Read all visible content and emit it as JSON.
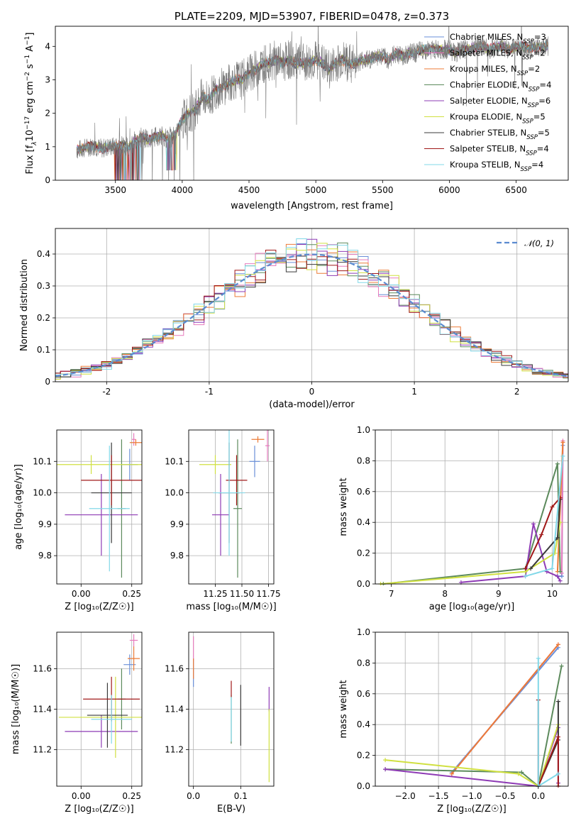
{
  "chart_data": [
    {
      "type": "line",
      "title": "PLATE=2209, MJD=53907, FIBERID=0478, z=0.373",
      "xlabel": "wavelength [Angstrom, rest frame]",
      "ylabel": "Flux [f",
      "ylabel_parts": [
        "Flux [f",
        "λ",
        "10",
        "−17",
        " erg cm",
        "−2",
        " s",
        "−1",
        " A",
        "−1",
        "]"
      ],
      "xlim": [
        3050,
        6890
      ],
      "ylim": [
        0,
        4.6
      ],
      "xticks": [
        3500,
        4000,
        4500,
        5000,
        5500,
        6000,
        6500
      ],
      "yticks": [
        0,
        1,
        2,
        3,
        4
      ],
      "data_series": {
        "name": "data",
        "x": [
          3210,
          3260,
          3300,
          3350,
          3400,
          3450,
          3500,
          3550,
          3600,
          3650,
          3700,
          3750,
          3800,
          3850,
          3900,
          3950,
          4000,
          4050,
          4100,
          4150,
          4200,
          4250,
          4300,
          4350,
          4400,
          4450,
          4500,
          4550,
          4600,
          4650,
          4700,
          4750,
          4800,
          4850,
          4900,
          4950,
          5000,
          5050,
          5100,
          5150,
          5200,
          5250,
          5300,
          5350,
          5400,
          5450,
          5500,
          5550,
          5600,
          5650,
          5700,
          5750,
          5800,
          5850,
          5900,
          5950,
          6000,
          6050,
          6100,
          6150,
          6200,
          6250,
          6300,
          6350,
          6400,
          6450,
          6500,
          6550,
          6600,
          6650,
          6700
        ],
        "y": [
          0.9,
          0.95,
          1.0,
          1.0,
          0.95,
          1.0,
          1.0,
          1.05,
          1.0,
          1.2,
          1.3,
          1.2,
          1.3,
          1.35,
          1.2,
          1.4,
          1.8,
          2.0,
          2.1,
          2.5,
          2.4,
          2.7,
          2.8,
          2.9,
          3.0,
          3.0,
          3.2,
          3.3,
          3.5,
          3.5,
          3.6,
          3.5,
          3.6,
          3.5,
          3.5,
          3.5,
          3.6,
          3.5,
          3.3,
          3.5,
          3.6,
          3.5,
          3.5,
          3.6,
          3.6,
          3.7,
          3.7,
          3.6,
          3.8,
          3.7,
          3.8,
          3.8,
          3.9,
          3.9,
          3.9,
          3.9,
          3.9,
          3.8,
          3.9,
          3.9,
          4.0,
          4.0,
          3.9,
          4.0,
          4.0,
          3.9,
          4.0,
          4.0,
          3.95,
          4.0,
          4.0
        ]
      },
      "models": [
        {
          "name": "Chabrier MILES",
          "nssp": "3",
          "color": "#6a8fd8"
        },
        {
          "name": "Salpeter MILES",
          "nssp": "2",
          "color": "#e77bbd"
        },
        {
          "name": "Kroupa MILES",
          "nssp": "2",
          "color": "#ec7b37"
        },
        {
          "name": "Chabrier ELODIE",
          "nssp": "4",
          "color": "#5c8a5c"
        },
        {
          "name": "Salpeter ELODIE",
          "nssp": "6",
          "color": "#8e3bb5"
        },
        {
          "name": "Kroupa ELODIE",
          "nssp": "5",
          "color": "#d0e040"
        },
        {
          "name": "Chabrier STELIB",
          "nssp": "5",
          "color": "#3a3a3a"
        },
        {
          "name": "Salpeter STELIB",
          "nssp": "4",
          "color": "#a01818"
        },
        {
          "name": "Kroupa STELIB",
          "nssp": "4",
          "color": "#82d8e8"
        }
      ],
      "legend_subscript": "SSP",
      "legend": "top-right",
      "grid": false
    },
    {
      "type": "bar",
      "subtype": "step-histogram",
      "xlabel": "(data-model)/error",
      "ylabel": "Normed distribution",
      "xlim": [
        -2.5,
        2.5
      ],
      "ylim": [
        0,
        0.48
      ],
      "xticks": [
        -2,
        -1,
        0,
        1,
        2
      ],
      "yticks": [
        0.0,
        0.1,
        0.2,
        0.3,
        0.4
      ],
      "legend_label": "𝒩(0, 1)",
      "legend": "top-right",
      "grid": true
    },
    {
      "type": "scatter",
      "subtype": "errorbar",
      "xlabel": "Z [log₁₀(Z/Z☉)]",
      "ylabel": "age  [log₁₀(age/yr)]",
      "xlim": [
        -0.12,
        0.3
      ],
      "ylim": [
        9.71,
        10.2
      ],
      "xticks": [
        "0.00",
        "0.25"
      ],
      "yticks": [
        "9.8",
        "9.9",
        "10.0",
        "10.1"
      ],
      "points": [
        {
          "x": 0.24,
          "xerr": 0.04,
          "y": 10.09,
          "yerr": 0.05,
          "color": "#6a8fd8"
        },
        {
          "x": 0.26,
          "xerr": 0.01,
          "y": 10.17,
          "yerr": 0.02,
          "color": "#e77bbd"
        },
        {
          "x": 0.27,
          "xerr": 0.03,
          "y": 10.16,
          "yerr": 0.01,
          "color": "#ec7b37"
        },
        {
          "x": 0.2,
          "xerr": 0.02,
          "y": 9.95,
          "yerr": 0.22,
          "color": "#5c8a5c"
        },
        {
          "x": 0.1,
          "xerr": 0.18,
          "y": 9.93,
          "yerr": 0.13,
          "color": "#8e3bb5"
        },
        {
          "x": 0.05,
          "xerr": 0.25,
          "y": 10.09,
          "yerr": 0.03,
          "color": "#d0e040"
        },
        {
          "x": 0.15,
          "xerr": 0.1,
          "y": 10.0,
          "yerr": 0.16,
          "color": "#3a3a3a"
        },
        {
          "x": 0.15,
          "xerr": 0.15,
          "y": 10.04,
          "yerr": 0.08,
          "color": "#a01818"
        },
        {
          "x": 0.14,
          "xerr": 0.1,
          "y": 9.95,
          "yerr": 0.2,
          "color": "#82d8e8"
        }
      ],
      "grid": true
    },
    {
      "type": "scatter",
      "subtype": "errorbar",
      "xlabel": "mass [log₁₀(M/M☉)]",
      "ylabel": "",
      "xlim": [
        11.0,
        11.8
      ],
      "ylim": [
        9.71,
        10.2
      ],
      "xticks": [
        "11.25",
        "11.50",
        "11.75"
      ],
      "yticks": [
        "9.8",
        "9.9",
        "10.0",
        "10.1"
      ],
      "points": [
        {
          "x": 11.62,
          "xerr": 0.05,
          "y": 10.1,
          "yerr": 0.05,
          "color": "#6a8fd8"
        },
        {
          "x": 11.74,
          "xerr": 0.02,
          "y": 10.15,
          "yerr": 0.05,
          "color": "#e77bbd"
        },
        {
          "x": 11.65,
          "xerr": 0.06,
          "y": 10.17,
          "yerr": 0.01,
          "color": "#ec7b37"
        },
        {
          "x": 11.46,
          "xerr": 0.04,
          "y": 9.95,
          "yerr": 0.22,
          "color": "#5c8a5c"
        },
        {
          "x": 11.3,
          "xerr": 0.08,
          "y": 9.93,
          "yerr": 0.13,
          "color": "#8e3bb5"
        },
        {
          "x": 11.25,
          "xerr": 0.15,
          "y": 10.09,
          "yerr": 0.03,
          "color": "#d0e040"
        },
        {
          "x": 11.38,
          "xerr": 0.1,
          "y": 10.0,
          "yerr": 0.16,
          "color": "#3a3a3a"
        },
        {
          "x": 11.45,
          "xerr": 0.1,
          "y": 10.04,
          "yerr": 0.08,
          "color": "#a01818"
        },
        {
          "x": 11.38,
          "xerr": 0.15,
          "y": 10.0,
          "yerr": 0.2,
          "color": "#82d8e8"
        }
      ],
      "grid": true
    },
    {
      "type": "line",
      "xlabel": "age  [log₁₀(age/yr)]",
      "ylabel": "mass weight",
      "xlim": [
        6.7,
        10.3
      ],
      "ylim": [
        0.0,
        1.0
      ],
      "xticks": [
        "7",
        "8",
        "9",
        "10"
      ],
      "yticks": [
        "0.0",
        "0.2",
        "0.4",
        "0.6",
        "0.8",
        "1.0"
      ],
      "series": [
        {
          "name": "Chabrier MILES",
          "color": "#6a8fd8",
          "x": [
            10.1,
            10.18,
            10.2
          ],
          "y": [
            0.05,
            0.05,
            0.9
          ]
        },
        {
          "name": "Salpeter MILES",
          "color": "#e77bbd",
          "x": [
            10.18,
            10.2
          ],
          "y": [
            0.07,
            0.93
          ]
        },
        {
          "name": "Kroupa MILES",
          "color": "#ec7b37",
          "x": [
            10.1,
            10.2
          ],
          "y": [
            0.08,
            0.92
          ]
        },
        {
          "name": "Chabrier ELODIE",
          "color": "#5c8a5c",
          "x": [
            6.85,
            9.5,
            10.1,
            10.15
          ],
          "y": [
            0.0,
            0.1,
            0.78,
            0.08
          ]
        },
        {
          "name": "Salpeter ELODIE",
          "color": "#8e3bb5",
          "x": [
            8.3,
            9.5,
            9.65,
            9.9,
            10.1,
            10.15
          ],
          "y": [
            0.01,
            0.05,
            0.39,
            0.08,
            0.05,
            0.02
          ]
        },
        {
          "name": "Kroupa ELODIE",
          "color": "#d0e040",
          "x": [
            6.8,
            9.5,
            10.05,
            10.15
          ],
          "y": [
            0.0,
            0.08,
            0.2,
            0.4
          ]
        },
        {
          "name": "Chabrier STELIB",
          "color": "#3a3a3a",
          "x": [
            9.6,
            10.1,
            10.15
          ],
          "y": [
            0.1,
            0.3,
            0.55
          ]
        },
        {
          "name": "Salpeter STELIB",
          "color": "#a01818",
          "x": [
            9.5,
            9.8,
            10.0,
            10.15
          ],
          "y": [
            0.1,
            0.32,
            0.5,
            0.56
          ]
        },
        {
          "name": "Kroupa STELIB",
          "color": "#82d8e8",
          "x": [
            9.5,
            10.0,
            10.2
          ],
          "y": [
            0.05,
            0.1,
            0.83
          ]
        }
      ],
      "grid": true
    },
    {
      "type": "scatter",
      "subtype": "errorbar",
      "xlabel": "Z [log₁₀(Z/Z☉)]",
      "ylabel": "mass [log₁₀(M/M☉)]",
      "xlim": [
        -0.12,
        0.3
      ],
      "ylim": [
        11.02,
        11.78
      ],
      "xticks": [
        "0.00",
        "0.25"
      ],
      "yticks": [
        "11.2",
        "11.4",
        "11.6"
      ],
      "points": [
        {
          "x": 0.24,
          "xerr": 0.03,
          "y": 11.62,
          "yerr": 0.05,
          "color": "#6a8fd8"
        },
        {
          "x": 0.26,
          "xerr": 0.02,
          "y": 11.74,
          "yerr": 0.03,
          "color": "#e77bbd"
        },
        {
          "x": 0.26,
          "xerr": 0.03,
          "y": 11.65,
          "yerr": 0.06,
          "color": "#ec7b37"
        },
        {
          "x": 0.2,
          "xerr": 0.02,
          "y": 11.45,
          "yerr": 0.15,
          "color": "#5c8a5c"
        },
        {
          "x": 0.1,
          "xerr": 0.18,
          "y": 11.29,
          "yerr": 0.08,
          "color": "#8e3bb5"
        },
        {
          "x": 0.17,
          "xerr": 0.28,
          "y": 11.36,
          "yerr": 0.2,
          "color": "#d0e040"
        },
        {
          "x": 0.13,
          "xerr": 0.1,
          "y": 11.37,
          "yerr": 0.16,
          "color": "#3a3a3a"
        },
        {
          "x": 0.15,
          "xerr": 0.14,
          "y": 11.45,
          "yerr": 0.11,
          "color": "#a01818"
        },
        {
          "x": 0.15,
          "xerr": 0.1,
          "y": 11.35,
          "yerr": 0.12,
          "color": "#82d8e8"
        }
      ],
      "grid": true
    },
    {
      "type": "scatter",
      "subtype": "errorbar",
      "xlabel": "E(B-V)",
      "ylabel": "",
      "xlim": [
        -0.01,
        0.17
      ],
      "ylim": [
        11.02,
        11.78
      ],
      "xticks": [
        "0.0",
        "0.1"
      ],
      "yticks": [
        "11.2",
        "11.4",
        "11.6"
      ],
      "points": [
        {
          "x": 0.0,
          "y": 11.58,
          "yerr": 0.07,
          "color": "#6a8fd8"
        },
        {
          "x": 0.0,
          "y": 11.7,
          "yerr": 0.06,
          "color": "#e77bbd"
        },
        {
          "x": 0.0,
          "y": 11.6,
          "yerr": 0.05,
          "color": "#ec7b37"
        },
        {
          "x": 0.08,
          "y": 11.35,
          "yerr": 0.12,
          "color": "#5c8a5c"
        },
        {
          "x": 0.16,
          "y": 11.45,
          "yerr": 0.06,
          "color": "#8e3bb5"
        },
        {
          "x": 0.16,
          "y": 11.22,
          "yerr": 0.18,
          "color": "#d0e040"
        },
        {
          "x": 0.1,
          "y": 11.37,
          "yerr": 0.15,
          "color": "#3a3a3a"
        },
        {
          "x": 0.08,
          "y": 11.5,
          "yerr": 0.04,
          "color": "#a01818"
        },
        {
          "x": 0.08,
          "y": 11.35,
          "yerr": 0.11,
          "color": "#82d8e8"
        }
      ],
      "grid": true
    },
    {
      "type": "line",
      "xlabel": "Z [log₁₀(Z/Z☉)]",
      "ylabel": "mass weight",
      "xlim": [
        -2.45,
        0.45
      ],
      "ylim": [
        0.0,
        1.0
      ],
      "xticks": [
        "−2.0",
        "−1.5",
        "−1.0",
        "−0.5",
        "0.0"
      ],
      "yticks": [
        "0.0",
        "0.2",
        "0.4",
        "0.6",
        "0.8",
        "1.0"
      ],
      "series": [
        {
          "name": "Chabrier MILES",
          "color": "#6a8fd8",
          "x": [
            -1.3,
            0.3
          ],
          "y": [
            0.09,
            0.9
          ]
        },
        {
          "name": "Salpeter MILES",
          "color": "#e77bbd",
          "x": [
            -1.3,
            0.3
          ],
          "y": [
            0.08,
            0.92
          ]
        },
        {
          "name": "Kroupa MILES",
          "color": "#ec7b37",
          "x": [
            -1.3,
            0.3
          ],
          "y": [
            0.08,
            0.92
          ]
        },
        {
          "name": "Chabrier ELODIE",
          "color": "#5c8a5c",
          "x": [
            -2.3,
            -0.25,
            0.0,
            0.35
          ],
          "y": [
            0.11,
            0.09,
            0.0,
            0.78
          ]
        },
        {
          "name": "Salpeter ELODIE",
          "color": "#8e3bb5",
          "x": [
            -2.3,
            0.0,
            0.3,
            0.3
          ],
          "y": [
            0.11,
            0.0,
            0.38,
            0.02
          ]
        },
        {
          "name": "Kroupa ELODIE",
          "color": "#d0e040",
          "x": [
            -2.3,
            -0.3,
            0.0,
            0.3
          ],
          "y": [
            0.17,
            0.08,
            0.0,
            0.4
          ]
        },
        {
          "name": "Chabrier STELIB",
          "color": "#3a3a3a",
          "x": [
            0.0,
            0.3,
            0.3
          ],
          "y": [
            0.0,
            0.3,
            0.55
          ]
        },
        {
          "name": "Salpeter STELIB",
          "color": "#a01818",
          "x": [
            0.0,
            0.0,
            0.3,
            0.3
          ],
          "y": [
            0.56,
            0.0,
            0.32,
            0.0
          ]
        },
        {
          "name": "Kroupa STELIB",
          "color": "#82d8e8",
          "x": [
            0.0,
            0.0,
            0.3
          ],
          "y": [
            0.83,
            0.0,
            0.08
          ]
        }
      ],
      "grid": true
    }
  ]
}
